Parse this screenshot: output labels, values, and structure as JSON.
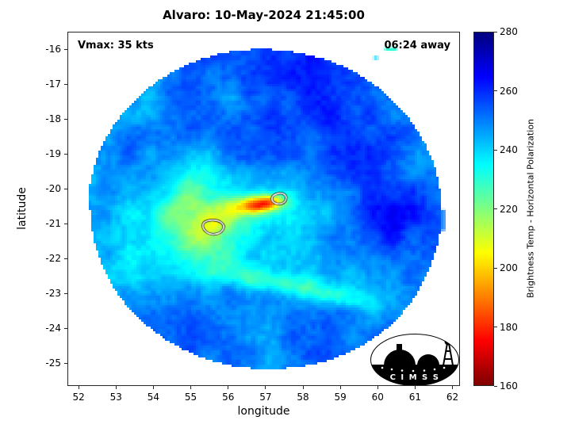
{
  "annotations": {
    "vmax": "Vmax: 35 kts",
    "eta_away": "06:24 away"
  },
  "logo_text": "C I M S S",
  "chart_data": {
    "type": "heatmap",
    "title": "Alvaro: 10-May-2024 21:45:00",
    "xlabel": "longitude",
    "ylabel": "latitude",
    "xlim": [
      51.7,
      62.2
    ],
    "ylim": [
      -25.65,
      -15.5
    ],
    "xticks": [
      52,
      53,
      54,
      55,
      56,
      57,
      58,
      59,
      60,
      61,
      62
    ],
    "yticks": [
      -16,
      -17,
      -18,
      -19,
      -20,
      -21,
      -22,
      -23,
      -24,
      -25
    ],
    "grid": false,
    "colorbar": {
      "label": "Brightness Temp - Horizontal Polarization",
      "min": 160,
      "max": 280,
      "ticks": [
        160,
        180,
        200,
        220,
        240,
        260,
        280
      ],
      "colormap": "jet-reversed (280 K = dark blue at top, 160 K = dark red at bottom)"
    },
    "swath": {
      "center_lon": 57.0,
      "center_lat": -20.6,
      "radius_lon_deg": 4.72,
      "radius_lat_deg": 4.58,
      "background_K": 247
    },
    "features": [
      {
        "name": "north-blue-region",
        "lon": 57.4,
        "lat": -17.0,
        "sx": 2.4,
        "sy": 1.5,
        "rot": 0,
        "dT": 9
      },
      {
        "name": "east-blue-region",
        "lon": 60.2,
        "lat": -20.3,
        "sx": 1.4,
        "sy": 2.2,
        "rot": 0,
        "dT": 8
      },
      {
        "name": "ne-blue-patch",
        "lon": 58.8,
        "lat": -17.6,
        "sx": 1.2,
        "sy": 1.0,
        "rot": 0,
        "dT": 5
      },
      {
        "name": "west-cool-edge",
        "lon": 53.5,
        "lat": -20.9,
        "sx": 1.1,
        "sy": 1.8,
        "rot": 0,
        "dT": -5
      },
      {
        "name": "center-green-wash",
        "lon": 55.5,
        "lat": -21.2,
        "sx": 1.5,
        "sy": 1.1,
        "rot": 25,
        "dT": -10
      },
      {
        "name": "convective-core",
        "lon": 57.0,
        "lat": -20.42,
        "sx": 0.35,
        "sy": 0.17,
        "rot": 8,
        "dT": -50
      },
      {
        "name": "core-west-tail",
        "lon": 56.45,
        "lat": -20.5,
        "sx": 0.45,
        "sy": 0.2,
        "rot": 5,
        "dT": -24
      },
      {
        "name": "west-band-blob",
        "lon": 55.55,
        "lat": -21.1,
        "sx": 0.5,
        "sy": 0.32,
        "rot": 35,
        "dT": -24
      },
      {
        "name": "nw-band-arm",
        "lon": 54.85,
        "lat": -20.4,
        "sx": 0.85,
        "sy": 0.42,
        "rot": 60,
        "dT": -12
      },
      {
        "name": "sw-band",
        "lon": 55.95,
        "lat": -22.15,
        "sx": 0.85,
        "sy": 0.4,
        "rot": -20,
        "dT": -14
      },
      {
        "name": "south-arc-inner",
        "lon": 57.4,
        "lat": -22.7,
        "sx": 1.1,
        "sy": 0.2,
        "rot": -8,
        "dT": -12
      },
      {
        "name": "south-arc-outer",
        "lon": 58.9,
        "lat": -23.1,
        "sx": 0.9,
        "sy": 0.18,
        "rot": -12,
        "dT": -9
      },
      {
        "name": "north-green-patch",
        "lon": 56.7,
        "lat": -17.5,
        "sx": 0.8,
        "sy": 0.3,
        "rot": -8,
        "dT": -6
      }
    ],
    "contours": [
      {
        "name": "cold-convection-contour-east",
        "points": [
          [
            57.2,
            -20.18
          ],
          [
            57.42,
            -20.1
          ],
          [
            57.58,
            -20.22
          ],
          [
            57.5,
            -20.42
          ],
          [
            57.28,
            -20.45
          ],
          [
            57.15,
            -20.32
          ]
        ]
      },
      {
        "name": "cold-convection-contour-west",
        "points": [
          [
            55.35,
            -20.92
          ],
          [
            55.7,
            -20.88
          ],
          [
            55.92,
            -21.05
          ],
          [
            55.8,
            -21.28
          ],
          [
            55.5,
            -21.32
          ],
          [
            55.3,
            -21.12
          ]
        ]
      }
    ],
    "flecks": [
      {
        "lon": 60.35,
        "lat": -16.0,
        "w": 0.32,
        "h": 0.1,
        "K": 230
      },
      {
        "lon": 59.95,
        "lat": -16.25,
        "w": 0.12,
        "h": 0.08,
        "K": 240
      },
      {
        "lon": 61.75,
        "lat": -20.9,
        "w": 0.1,
        "h": 0.6,
        "K": 251
      }
    ]
  }
}
